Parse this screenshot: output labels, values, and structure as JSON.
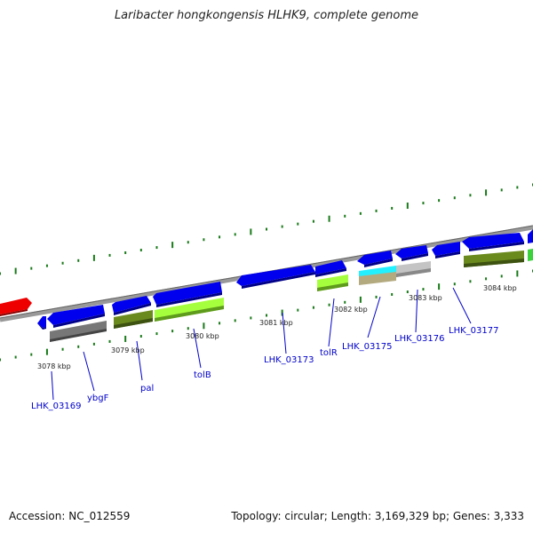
{
  "title": "Laribacter hongkongensis HLHK9, complete genome",
  "footer": {
    "accession": "Accession: NC_012559",
    "topology": "Topology: circular; Length: 3,169,329 bp; Genes: 3,333"
  },
  "colors": {
    "cds": "#0000ee",
    "highlight": "#ee0000",
    "backbone": "#888888",
    "tick": "#1a7a1a",
    "label": "#0000cc"
  },
  "gene_labels": [
    "LHK_03169",
    "ybgF",
    "pal",
    "tolB",
    "LHK_03173",
    "tolR",
    "LHK_03175",
    "LHK_03176",
    "LHK_03177"
  ],
  "kbp_labels": [
    "3078 kbp",
    "3079 kbp",
    "3080 kbp",
    "3081 kbp",
    "3082 kbp",
    "3083 kbp",
    "3084 kbp"
  ]
}
